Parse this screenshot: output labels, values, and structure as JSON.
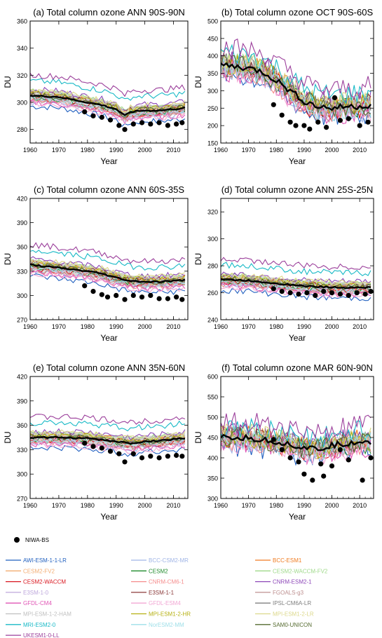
{
  "figure_label": "Total column ozone six-panel comparison",
  "chart_data": [
    {
      "type": "line",
      "title": "(a) Total column ozone ANN 90S-90N",
      "xlabel": "Year",
      "ylabel": "DU",
      "xlim": [
        1960,
        2015
      ],
      "ylim": [
        270,
        360
      ],
      "yticks": [
        280,
        300,
        320,
        340,
        360
      ],
      "xticks": [
        1960,
        1970,
        1980,
        1990,
        2000,
        2010
      ],
      "mmm": [
        [
          1960,
          305
        ],
        [
          1970,
          304
        ],
        [
          1980,
          300
        ],
        [
          1985,
          298
        ],
        [
          1990,
          295
        ],
        [
          1993,
          290
        ],
        [
          1995,
          293
        ],
        [
          2000,
          294
        ],
        [
          2005,
          294
        ],
        [
          2010,
          295
        ],
        [
          2014,
          296
        ]
      ],
      "obs": [
        [
          1979,
          293
        ],
        [
          1982,
          290
        ],
        [
          1985,
          289
        ],
        [
          1988,
          287
        ],
        [
          1991,
          283
        ],
        [
          1993,
          280
        ],
        [
          1996,
          284
        ],
        [
          1999,
          285
        ],
        [
          2002,
          284
        ],
        [
          2005,
          285
        ],
        [
          2008,
          283
        ],
        [
          2011,
          284
        ],
        [
          2013,
          285
        ]
      ]
    },
    {
      "type": "line",
      "title": "(b) Total column ozone OCT 90S-60S",
      "xlabel": "Year",
      "ylabel": "DU",
      "xlim": [
        1960,
        2015
      ],
      "ylim": [
        150,
        500
      ],
      "yticks": [
        150,
        200,
        250,
        300,
        350,
        400,
        450,
        500
      ],
      "xticks": [
        1960,
        1970,
        1980,
        1990,
        2000,
        2010
      ],
      "mmm": [
        [
          1960,
          375
        ],
        [
          1965,
          370
        ],
        [
          1970,
          365
        ],
        [
          1975,
          355
        ],
        [
          1980,
          330
        ],
        [
          1985,
          300
        ],
        [
          1990,
          270
        ],
        [
          1995,
          255
        ],
        [
          2000,
          250
        ],
        [
          2005,
          255
        ],
        [
          2010,
          255
        ],
        [
          2014,
          260
        ]
      ],
      "obs": [
        [
          1979,
          260
        ],
        [
          1982,
          230
        ],
        [
          1985,
          210
        ],
        [
          1987,
          200
        ],
        [
          1990,
          200
        ],
        [
          1992,
          190
        ],
        [
          1995,
          210
        ],
        [
          1998,
          195
        ],
        [
          2001,
          280
        ],
        [
          2003,
          215
        ],
        [
          2006,
          220
        ],
        [
          2010,
          200
        ],
        [
          2013,
          210
        ]
      ]
    },
    {
      "type": "line",
      "title": "(c) Total column ozone ANN 60S-35S",
      "xlabel": "Year",
      "ylabel": "DU",
      "xlim": [
        1960,
        2015
      ],
      "ylim": [
        270,
        420
      ],
      "yticks": [
        270,
        300,
        330,
        360,
        390,
        420
      ],
      "xticks": [
        1960,
        1970,
        1980,
        1990,
        2000,
        2010
      ],
      "mmm": [
        [
          1960,
          338
        ],
        [
          1970,
          334
        ],
        [
          1980,
          330
        ],
        [
          1985,
          327
        ],
        [
          1990,
          322
        ],
        [
          1995,
          318
        ],
        [
          2000,
          317
        ],
        [
          2005,
          317
        ],
        [
          2010,
          318
        ],
        [
          2014,
          319
        ]
      ],
      "obs": [
        [
          1979,
          312
        ],
        [
          1982,
          305
        ],
        [
          1985,
          301
        ],
        [
          1987,
          298
        ],
        [
          1990,
          300
        ],
        [
          1993,
          295
        ],
        [
          1996,
          300
        ],
        [
          1999,
          298
        ],
        [
          2002,
          300
        ],
        [
          2005,
          296
        ],
        [
          2008,
          296
        ],
        [
          2011,
          298
        ],
        [
          2013,
          295
        ]
      ]
    },
    {
      "type": "line",
      "title": "(d) Total column ozone ANN 25S-25N",
      "xlabel": "Year",
      "ylabel": "DU",
      "xlim": [
        1960,
        2015
      ],
      "ylim": [
        240,
        330
      ],
      "yticks": [
        240,
        260,
        280,
        300,
        320
      ],
      "xticks": [
        1960,
        1970,
        1980,
        1990,
        2000,
        2010
      ],
      "mmm": [
        [
          1960,
          270
        ],
        [
          1970,
          269
        ],
        [
          1980,
          267
        ],
        [
          1990,
          265
        ],
        [
          2000,
          264
        ],
        [
          2010,
          264
        ],
        [
          2014,
          264
        ]
      ],
      "obs": [
        [
          1979,
          263
        ],
        [
          1982,
          261
        ],
        [
          1985,
          260
        ],
        [
          1988,
          259
        ],
        [
          1991,
          260
        ],
        [
          1994,
          258
        ],
        [
          1997,
          261
        ],
        [
          2000,
          260
        ],
        [
          2003,
          259
        ],
        [
          2006,
          258
        ],
        [
          2009,
          260
        ],
        [
          2012,
          259
        ],
        [
          2014,
          261
        ]
      ]
    },
    {
      "type": "line",
      "title": "(e) Total column ozone ANN 35N-60N",
      "xlabel": "Year",
      "ylabel": "DU",
      "xlim": [
        1960,
        2015
      ],
      "ylim": [
        270,
        420
      ],
      "yticks": [
        270,
        300,
        330,
        360,
        390,
        420
      ],
      "xticks": [
        1960,
        1970,
        1980,
        1990,
        2000,
        2010
      ],
      "mmm": [
        [
          1960,
          345
        ],
        [
          1970,
          345
        ],
        [
          1980,
          344
        ],
        [
          1990,
          340
        ],
        [
          1995,
          338
        ],
        [
          2000,
          340
        ],
        [
          2005,
          341
        ],
        [
          2010,
          343
        ],
        [
          2014,
          344
        ]
      ],
      "obs": [
        [
          1979,
          338
        ],
        [
          1982,
          334
        ],
        [
          1985,
          332
        ],
        [
          1988,
          328
        ],
        [
          1991,
          325
        ],
        [
          1993,
          315
        ],
        [
          1996,
          325
        ],
        [
          1999,
          320
        ],
        [
          2002,
          322
        ],
        [
          2005,
          320
        ],
        [
          2008,
          322
        ],
        [
          2011,
          323
        ],
        [
          2013,
          322
        ]
      ]
    },
    {
      "type": "line",
      "title": "(f) Total column ozone MAR 60N-90N",
      "xlabel": "Year",
      "ylabel": "DU",
      "xlim": [
        1960,
        2015
      ],
      "ylim": [
        300,
        600
      ],
      "yticks": [
        300,
        350,
        400,
        450,
        500,
        550,
        600
      ],
      "xticks": [
        1960,
        1970,
        1980,
        1990,
        2000,
        2010
      ],
      "mmm": [
        [
          1960,
          450
        ],
        [
          1970,
          448
        ],
        [
          1980,
          440
        ],
        [
          1990,
          425
        ],
        [
          1995,
          420
        ],
        [
          2000,
          430
        ],
        [
          2005,
          435
        ],
        [
          2010,
          440
        ],
        [
          2014,
          440
        ]
      ],
      "obs": [
        [
          1979,
          445
        ],
        [
          1982,
          420
        ],
        [
          1985,
          400
        ],
        [
          1988,
          390
        ],
        [
          1990,
          360
        ],
        [
          1993,
          345
        ],
        [
          1996,
          385
        ],
        [
          1997,
          355
        ],
        [
          2000,
          380
        ],
        [
          2003,
          420
        ],
        [
          2006,
          395
        ],
        [
          2011,
          345
        ],
        [
          2014,
          400
        ]
      ]
    }
  ],
  "legend": {
    "obs_label": "NIWA-BS",
    "models": [
      {
        "name": "AWI-ESM-1-1-LR",
        "color": "#1f5fbf"
      },
      {
        "name": "BCC-CSM2-MR",
        "color": "#9fb4e6"
      },
      {
        "name": "BCC-ESM1",
        "color": "#f07b20"
      },
      {
        "name": "CESM2-FV2",
        "color": "#f3ad72"
      },
      {
        "name": "CESM2",
        "color": "#1f8b2c"
      },
      {
        "name": "CESM2-WACCM-FV2",
        "color": "#9fd98a"
      },
      {
        "name": "CESM2-WACCM",
        "color": "#d9161e"
      },
      {
        "name": "CNRM-CM6-1",
        "color": "#f58c8c"
      },
      {
        "name": "CNRM-ESM2-1",
        "color": "#8d47b8"
      },
      {
        "name": "E3SM-1-0",
        "color": "#bda7dc"
      },
      {
        "name": "E3SM-1-1",
        "color": "#8b3a3a"
      },
      {
        "name": "FGOALS-g3",
        "color": "#bd8f8f"
      },
      {
        "name": "GFDL-CM4",
        "color": "#e055b5"
      },
      {
        "name": "GFDL-ESM4",
        "color": "#f2a7d4"
      },
      {
        "name": "IPSL-CM6A-LR",
        "color": "#7f7f7f"
      },
      {
        "name": "MPI-ESM-1-2-HAM",
        "color": "#bfbfbf"
      },
      {
        "name": "MPI-ESM1-2-HR",
        "color": "#b5b010"
      },
      {
        "name": "MPI-ESM1-2-LR",
        "color": "#dcd88a"
      },
      {
        "name": "MRI-ESM2-0",
        "color": "#18b9c6"
      },
      {
        "name": "NorESM2-MM",
        "color": "#9edfe8"
      },
      {
        "name": "SAM0-UNICON",
        "color": "#556b2f"
      },
      {
        "name": "UKESM1-0-LL",
        "color": "#9b3f9b"
      }
    ]
  }
}
